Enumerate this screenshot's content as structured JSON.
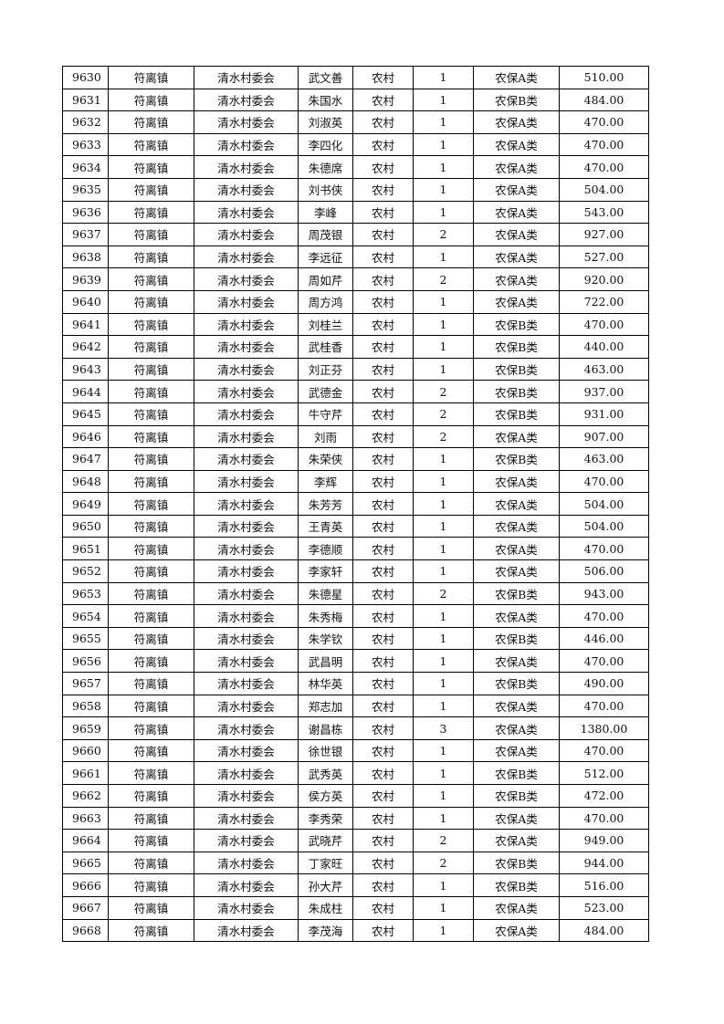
{
  "table": {
    "rows": [
      [
        "9630",
        "符离镇",
        "清水村委会",
        "武文善",
        "农村",
        "1",
        "农保A类",
        "510.00"
      ],
      [
        "9631",
        "符离镇",
        "清水村委会",
        "朱国水",
        "农村",
        "1",
        "农保B类",
        "484.00"
      ],
      [
        "9632",
        "符离镇",
        "清水村委会",
        "刘淑英",
        "农村",
        "1",
        "农保A类",
        "470.00"
      ],
      [
        "9633",
        "符离镇",
        "清水村委会",
        "李四化",
        "农村",
        "1",
        "农保A类",
        "470.00"
      ],
      [
        "9634",
        "符离镇",
        "清水村委会",
        "朱德席",
        "农村",
        "1",
        "农保A类",
        "470.00"
      ],
      [
        "9635",
        "符离镇",
        "清水村委会",
        "刘书侠",
        "农村",
        "1",
        "农保A类",
        "504.00"
      ],
      [
        "9636",
        "符离镇",
        "清水村委会",
        "李峰",
        "农村",
        "1",
        "农保A类",
        "543.00"
      ],
      [
        "9637",
        "符离镇",
        "清水村委会",
        "周茂银",
        "农村",
        "2",
        "农保A类",
        "927.00"
      ],
      [
        "9638",
        "符离镇",
        "清水村委会",
        "李远征",
        "农村",
        "1",
        "农保A类",
        "527.00"
      ],
      [
        "9639",
        "符离镇",
        "清水村委会",
        "周如芹",
        "农村",
        "2",
        "农保A类",
        "920.00"
      ],
      [
        "9640",
        "符离镇",
        "清水村委会",
        "周方鸿",
        "农村",
        "1",
        "农保A类",
        "722.00"
      ],
      [
        "9641",
        "符离镇",
        "清水村委会",
        "刘桂兰",
        "农村",
        "1",
        "农保B类",
        "470.00"
      ],
      [
        "9642",
        "符离镇",
        "清水村委会",
        "武桂香",
        "农村",
        "1",
        "农保B类",
        "440.00"
      ],
      [
        "9643",
        "符离镇",
        "清水村委会",
        "刘正芬",
        "农村",
        "1",
        "农保B类",
        "463.00"
      ],
      [
        "9644",
        "符离镇",
        "清水村委会",
        "武德金",
        "农村",
        "2",
        "农保B类",
        "937.00"
      ],
      [
        "9645",
        "符离镇",
        "清水村委会",
        "牛守芹",
        "农村",
        "2",
        "农保B类",
        "931.00"
      ],
      [
        "9646",
        "符离镇",
        "清水村委会",
        "刘雨",
        "农村",
        "2",
        "农保A类",
        "907.00"
      ],
      [
        "9647",
        "符离镇",
        "清水村委会",
        "朱荣侠",
        "农村",
        "1",
        "农保B类",
        "463.00"
      ],
      [
        "9648",
        "符离镇",
        "清水村委会",
        "李辉",
        "农村",
        "1",
        "农保A类",
        "470.00"
      ],
      [
        "9649",
        "符离镇",
        "清水村委会",
        "朱芳芳",
        "农村",
        "1",
        "农保A类",
        "504.00"
      ],
      [
        "9650",
        "符离镇",
        "清水村委会",
        "王青英",
        "农村",
        "1",
        "农保A类",
        "504.00"
      ],
      [
        "9651",
        "符离镇",
        "清水村委会",
        "李德顺",
        "农村",
        "1",
        "农保A类",
        "470.00"
      ],
      [
        "9652",
        "符离镇",
        "清水村委会",
        "李家轩",
        "农村",
        "1",
        "农保A类",
        "506.00"
      ],
      [
        "9653",
        "符离镇",
        "清水村委会",
        "朱德星",
        "农村",
        "2",
        "农保B类",
        "943.00"
      ],
      [
        "9654",
        "符离镇",
        "清水村委会",
        "朱秀梅",
        "农村",
        "1",
        "农保A类",
        "470.00"
      ],
      [
        "9655",
        "符离镇",
        "清水村委会",
        "朱学钦",
        "农村",
        "1",
        "农保B类",
        "446.00"
      ],
      [
        "9656",
        "符离镇",
        "清水村委会",
        "武昌明",
        "农村",
        "1",
        "农保A类",
        "470.00"
      ],
      [
        "9657",
        "符离镇",
        "清水村委会",
        "林华英",
        "农村",
        "1",
        "农保B类",
        "490.00"
      ],
      [
        "9658",
        "符离镇",
        "清水村委会",
        "郑志加",
        "农村",
        "1",
        "农保A类",
        "470.00"
      ],
      [
        "9659",
        "符离镇",
        "清水村委会",
        "谢昌栋",
        "农村",
        "3",
        "农保A类",
        "1380.00"
      ],
      [
        "9660",
        "符离镇",
        "清水村委会",
        "徐世银",
        "农村",
        "1",
        "农保A类",
        "470.00"
      ],
      [
        "9661",
        "符离镇",
        "清水村委会",
        "武秀英",
        "农村",
        "1",
        "农保B类",
        "512.00"
      ],
      [
        "9662",
        "符离镇",
        "清水村委会",
        "侯方英",
        "农村",
        "1",
        "农保B类",
        "472.00"
      ],
      [
        "9663",
        "符离镇",
        "清水村委会",
        "李秀荣",
        "农村",
        "1",
        "农保A类",
        "470.00"
      ],
      [
        "9664",
        "符离镇",
        "清水村委会",
        "武晓芹",
        "农村",
        "2",
        "农保A类",
        "949.00"
      ],
      [
        "9665",
        "符离镇",
        "清水村委会",
        "丁家旺",
        "农村",
        "2",
        "农保B类",
        "944.00"
      ],
      [
        "9666",
        "符离镇",
        "清水村委会",
        "孙大芹",
        "农村",
        "1",
        "农保B类",
        "516.00"
      ],
      [
        "9667",
        "符离镇",
        "清水村委会",
        "朱成柱",
        "农村",
        "1",
        "农保A类",
        "523.00"
      ],
      [
        "9668",
        "符离镇",
        "清水村委会",
        "李茂海",
        "农村",
        "1",
        "农保A类",
        "484.00"
      ]
    ]
  }
}
